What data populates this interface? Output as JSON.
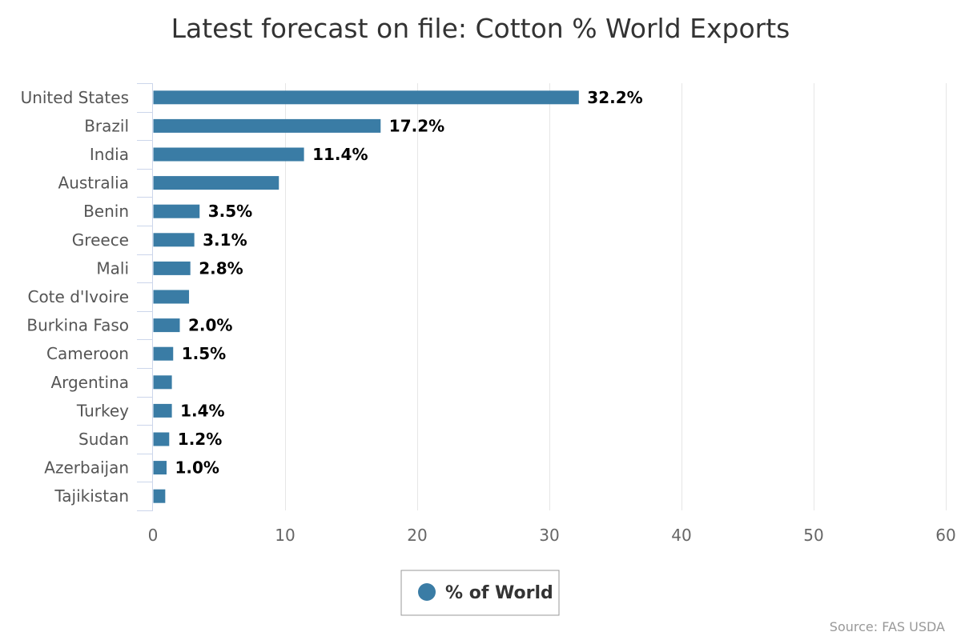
{
  "chart_data": {
    "type": "bar",
    "orientation": "horizontal",
    "title": "Latest forecast on file: Cotton % World Exports",
    "categories": [
      "United States",
      "Brazil",
      "India",
      "Australia",
      "Benin",
      "Greece",
      "Mali",
      "Cote d'Ivoire",
      "Burkina Faso",
      "Cameroon",
      "Argentina",
      "Turkey",
      "Sudan",
      "Azerbaijan",
      "Tajikistan"
    ],
    "series": [
      {
        "name": "% of World",
        "color": "#3a7ca5",
        "values": [
          32.2,
          17.2,
          11.4,
          9.5,
          3.5,
          3.1,
          2.8,
          2.7,
          2.0,
          1.5,
          1.4,
          1.4,
          1.2,
          1.0,
          0.9
        ],
        "labels": [
          "32.2%",
          "17.2%",
          "11.4%",
          "",
          "3.5%",
          "3.1%",
          "2.8%",
          "",
          "2.0%",
          "1.5%",
          "",
          "1.4%",
          "1.2%",
          "1.0%",
          ""
        ]
      }
    ],
    "xlim": [
      0,
      60
    ],
    "xticks": [
      0,
      10,
      20,
      30,
      40,
      50,
      60
    ],
    "grid": true,
    "legend_position": "bottom-center"
  },
  "credits": "Source: FAS USDA"
}
